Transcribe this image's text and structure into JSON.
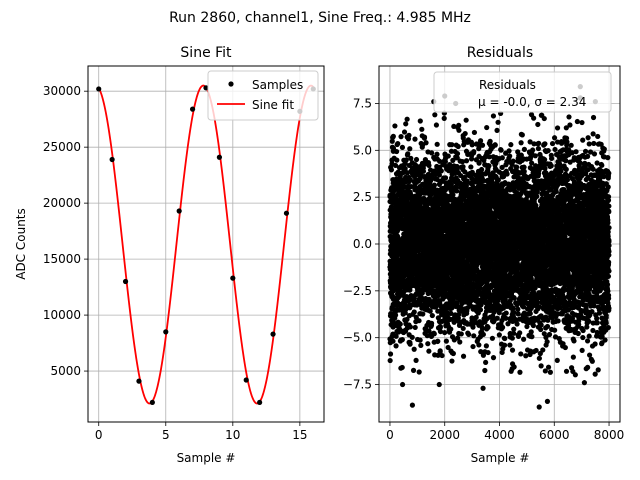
{
  "suptitle": "Run 2860, channel1, Sine Freq.: 4.985 MHz",
  "chart_data": [
    {
      "type": "scatter",
      "title": "Sine Fit",
      "xlabel": "Sample #",
      "ylabel": "ADC Counts",
      "xlim": [
        -0.8,
        16.8
      ],
      "ylim": [
        450,
        32250
      ],
      "xticks": [
        0,
        5,
        10,
        15
      ],
      "yticks": [
        5000,
        10000,
        15000,
        20000,
        25000,
        30000
      ],
      "grid": true,
      "legend_position": "upper-right",
      "series": [
        {
          "name": "Samples",
          "type": "scatter",
          "color": "#000000",
          "x": [
            0,
            1,
            2,
            3,
            4,
            5,
            6,
            7,
            8,
            9,
            10,
            11,
            12,
            13,
            14,
            15,
            16
          ],
          "y": [
            30200,
            23900,
            13000,
            4100,
            2200,
            8500,
            19300,
            28400,
            30300,
            24100,
            13300,
            4200,
            2200,
            8300,
            19100,
            28200,
            30200
          ]
        },
        {
          "name": "Sine fit",
          "type": "line",
          "color": "#ff0000",
          "model": {
            "offset": 16300,
            "amplitude": 14200,
            "period": 8.025,
            "phase_x": 7.8
          }
        }
      ]
    },
    {
      "type": "scatter",
      "title": "Residuals",
      "xlabel": "Sample #",
      "ylabel": "",
      "xlim": [
        -400,
        8400
      ],
      "ylim": [
        -9.5,
        9.5
      ],
      "xticks": [
        0,
        2000,
        4000,
        6000,
        8000
      ],
      "yticks": [
        -7.5,
        -5.0,
        -2.5,
        0.0,
        2.5,
        5.0,
        7.5
      ],
      "ytick_labels": [
        "−7.5",
        "−5.0",
        "−2.5",
        "0.0",
        "2.5",
        "5.0",
        "7.5"
      ],
      "grid": true,
      "legend_position": "upper-right",
      "legend_text": [
        "Residuals",
        "μ = -0.0, σ = 2.34"
      ],
      "series": [
        {
          "name": "Residuals",
          "type": "scatter",
          "color": "#000000",
          "count": 8000,
          "mean": -0.0,
          "std": 2.34,
          "x_range": [
            0,
            8000
          ],
          "outliers": [
            [
              820,
              -8.6
            ],
            [
              5450,
              -8.7
            ],
            [
              5750,
              -8.4
            ],
            [
              460,
              -7.5
            ],
            [
              1600,
              7.6
            ],
            [
              2000,
              7.9
            ],
            [
              6950,
              8.4
            ],
            [
              6950,
              7.8
            ],
            [
              7500,
              7.6
            ],
            [
              3400,
              -7.7
            ],
            [
              7100,
              -7.4
            ],
            [
              1800,
              -7.5
            ],
            [
              2400,
              7.5
            ]
          ]
        }
      ]
    }
  ]
}
